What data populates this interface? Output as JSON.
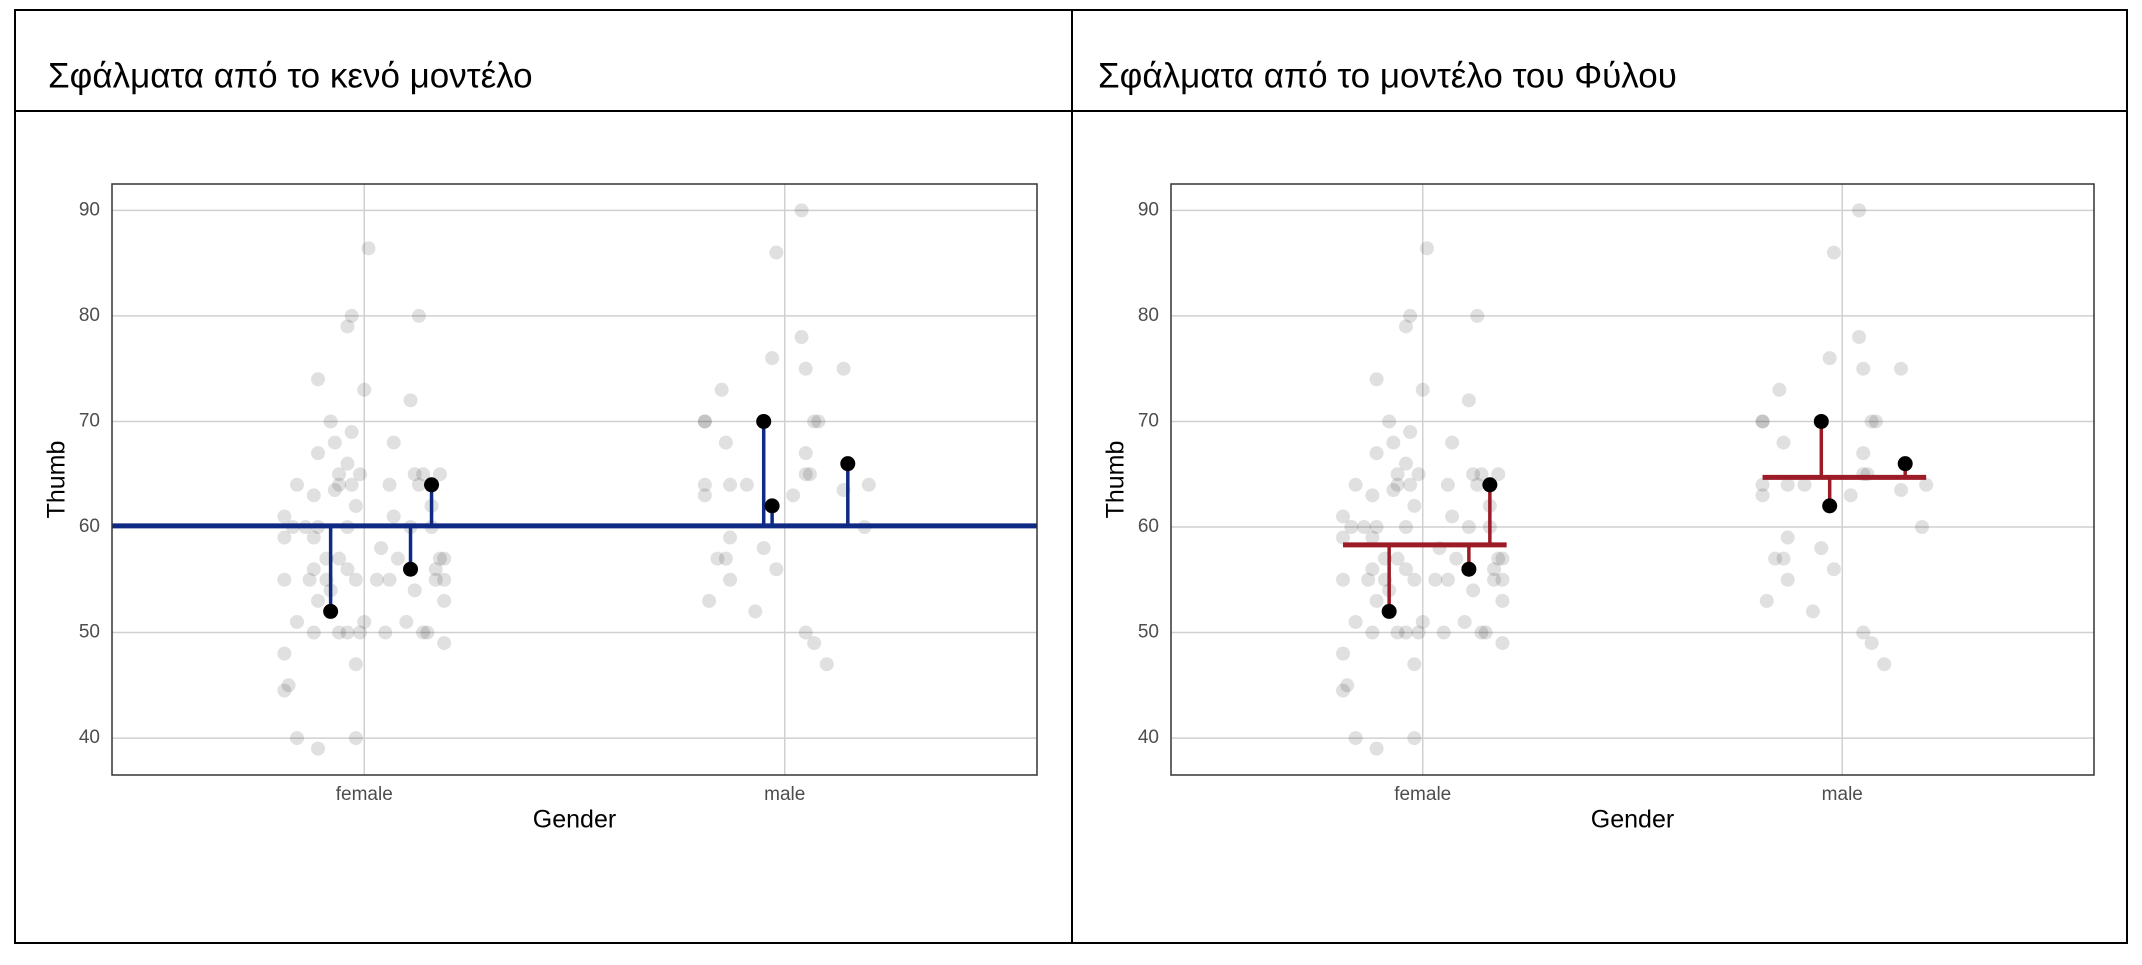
{
  "chart_data": [
    {
      "type": "scatter",
      "title": "Σφάλματα από το κενό μοντέλο",
      "xlabel": "Gender",
      "ylabel": "Thumb",
      "xlim": [
        0.4,
        2.6
      ],
      "ylim": [
        36.5,
        92.5
      ],
      "xticks": [
        {
          "value": 1,
          "label": "female"
        },
        {
          "value": 2,
          "label": "male"
        }
      ],
      "yticks": [
        40,
        50,
        60,
        70,
        80,
        90
      ],
      "grid": true,
      "points": {
        "color": "#000000",
        "x": [
          1.01,
          0.97,
          0.96,
          1.13,
          0.89,
          1.0,
          0.92,
          1.11,
          0.97,
          0.89,
          0.93,
          1.07,
          0.84,
          0.94,
          0.97,
          1.06,
          1.13,
          1.18,
          1.12,
          1.14,
          0.94,
          0.99,
          0.96,
          0.88,
          0.93,
          1.16,
          0.98,
          0.81,
          1.07,
          1.11,
          0.83,
          0.86,
          0.89,
          0.96,
          1.16,
          0.81,
          0.88,
          1.04,
          1.08,
          0.91,
          0.94,
          1.18,
          1.19,
          1.17,
          0.96,
          0.88,
          0.81,
          0.87,
          0.91,
          0.98,
          1.03,
          1.06,
          1.17,
          1.19,
          0.92,
          1.12,
          0.89,
          1.19,
          0.84,
          1.0,
          1.1,
          0.88,
          0.94,
          0.96,
          0.99,
          1.05,
          1.14,
          1.15,
          1.19,
          0.81,
          0.98,
          0.82,
          0.81,
          0.84,
          0.98,
          0.89,
          2.04,
          1.98,
          2.04,
          2.14,
          2.05,
          1.97,
          1.85,
          1.81,
          1.81,
          2.07,
          2.08,
          1.86,
          2.05,
          2.06,
          2.05,
          1.81,
          1.87,
          1.91,
          2.2,
          2.14,
          1.81,
          2.02,
          2.19,
          1.87,
          1.95,
          1.84,
          1.86,
          1.98,
          1.87,
          1.82,
          1.93,
          2.05,
          2.07,
          2.1
        ],
        "values": [
          86.4,
          80,
          79,
          80,
          74,
          73,
          70,
          72,
          69,
          67,
          68,
          68,
          64,
          64,
          64,
          64,
          64,
          65,
          65,
          65,
          65,
          65,
          66,
          63,
          63.5,
          62,
          62,
          61,
          61,
          60,
          60,
          60,
          60,
          60,
          60,
          59,
          59,
          58,
          57,
          57,
          57,
          57,
          57,
          56,
          56,
          56,
          55,
          55,
          55,
          55,
          55,
          55,
          55,
          55,
          54,
          54,
          53,
          53,
          51,
          51,
          51,
          50,
          50,
          50,
          50,
          50,
          50,
          50,
          49,
          48,
          47,
          45,
          44.5,
          40,
          40,
          39,
          90,
          86,
          78,
          75,
          75,
          76,
          73,
          70,
          70,
          70,
          70,
          68,
          67,
          65,
          65,
          64,
          64,
          64,
          64,
          63.5,
          63,
          63,
          60,
          59,
          58,
          57,
          57,
          56,
          55,
          53,
          52,
          50,
          49,
          47
        ]
      },
      "highlight": {
        "color": "#000000",
        "x": [
          0.92,
          1.11,
          1.16,
          1.95,
          1.97,
          2.15
        ],
        "values": [
          52,
          56,
          64,
          70,
          62,
          66
        ]
      },
      "model": {
        "color": "#0f2a85",
        "segments": [
          {
            "x": [
              0.4,
              2.6
            ],
            "value": 60.1
          }
        ]
      }
    },
    {
      "type": "scatter",
      "title": "Σφάλματα από το μοντέλο του Φύλου",
      "xlabel": "Gender",
      "ylabel": "Thumb",
      "xlim": [
        0.4,
        2.6
      ],
      "ylim": [
        36.5,
        92.5
      ],
      "xticks": [
        {
          "value": 1,
          "label": "female"
        },
        {
          "value": 2,
          "label": "male"
        }
      ],
      "yticks": [
        40,
        50,
        60,
        70,
        80,
        90
      ],
      "grid": true,
      "points": {
        "color": "#000000",
        "x": [
          1.01,
          0.97,
          0.96,
          1.13,
          0.89,
          1.0,
          0.92,
          1.11,
          0.97,
          0.89,
          0.93,
          1.07,
          0.84,
          0.94,
          0.97,
          1.06,
          1.13,
          1.18,
          1.12,
          1.14,
          0.94,
          0.99,
          0.96,
          0.88,
          0.93,
          1.16,
          0.98,
          0.81,
          1.07,
          1.11,
          0.83,
          0.86,
          0.89,
          0.96,
          1.16,
          0.81,
          0.88,
          1.04,
          1.08,
          0.91,
          0.94,
          1.18,
          1.19,
          1.17,
          0.96,
          0.88,
          0.81,
          0.87,
          0.91,
          0.98,
          1.03,
          1.06,
          1.17,
          1.19,
          0.92,
          1.12,
          0.89,
          1.19,
          0.84,
          1.0,
          1.1,
          0.88,
          0.94,
          0.96,
          0.99,
          1.05,
          1.14,
          1.15,
          1.19,
          0.81,
          0.98,
          0.82,
          0.81,
          0.84,
          0.98,
          0.89,
          2.04,
          1.98,
          2.04,
          2.14,
          2.05,
          1.97,
          1.85,
          1.81,
          1.81,
          2.07,
          2.08,
          1.86,
          2.05,
          2.06,
          2.05,
          1.81,
          1.87,
          1.91,
          2.2,
          2.14,
          1.81,
          2.02,
          2.19,
          1.87,
          1.95,
          1.84,
          1.86,
          1.98,
          1.87,
          1.82,
          1.93,
          2.05,
          2.07,
          2.1
        ],
        "values": [
          86.4,
          80,
          79,
          80,
          74,
          73,
          70,
          72,
          69,
          67,
          68,
          68,
          64,
          64,
          64,
          64,
          64,
          65,
          65,
          65,
          65,
          65,
          66,
          63,
          63.5,
          62,
          62,
          61,
          61,
          60,
          60,
          60,
          60,
          60,
          60,
          59,
          59,
          58,
          57,
          57,
          57,
          57,
          57,
          56,
          56,
          56,
          55,
          55,
          55,
          55,
          55,
          55,
          55,
          55,
          54,
          54,
          53,
          53,
          51,
          51,
          51,
          50,
          50,
          50,
          50,
          50,
          50,
          50,
          49,
          48,
          47,
          45,
          44.5,
          40,
          40,
          39,
          90,
          86,
          78,
          75,
          75,
          76,
          73,
          70,
          70,
          70,
          70,
          68,
          67,
          65,
          65,
          64,
          64,
          64,
          64,
          63.5,
          63,
          63,
          60,
          59,
          58,
          57,
          57,
          56,
          55,
          53,
          52,
          50,
          49,
          47
        ]
      },
      "highlight": {
        "color": "#000000",
        "x": [
          0.92,
          1.11,
          1.16,
          1.95,
          1.97,
          2.15
        ],
        "values": [
          52,
          56,
          64,
          70,
          62,
          66
        ]
      },
      "model": {
        "color": "#9b1b26",
        "segments": [
          {
            "x": [
              0.81,
              1.2
            ],
            "value": 58.3
          },
          {
            "x": [
              1.81,
              2.2
            ],
            "value": 64.7
          }
        ]
      }
    }
  ]
}
